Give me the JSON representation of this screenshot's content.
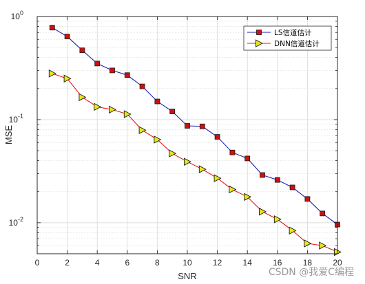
{
  "chart_data": {
    "type": "line",
    "xlabel": "SNR",
    "ylabel": "MSE",
    "xlim": [
      0,
      20
    ],
    "ylim": [
      0.005,
      1
    ],
    "yscale": "log",
    "xticks": [
      0,
      2,
      4,
      6,
      8,
      10,
      12,
      14,
      16,
      18,
      20
    ],
    "xtick_labels": [
      "0",
      "2",
      "4",
      "6",
      "8",
      "10",
      "12",
      "14",
      "16",
      "18",
      "20"
    ],
    "yticks": [
      {
        "value": 1,
        "base": "10",
        "exp": "0"
      },
      {
        "value": 0.1,
        "base": "10",
        "exp": "-1"
      },
      {
        "value": 0.01,
        "base": "10",
        "exp": "-2"
      }
    ],
    "grid": true,
    "legend_position": "top-right",
    "x": [
      1,
      2,
      3,
      4,
      5,
      6,
      7,
      8,
      9,
      10,
      11,
      12,
      13,
      14,
      15,
      16,
      17,
      18,
      19,
      20
    ],
    "series": [
      {
        "name": "LS信道估计",
        "line_color": "#1f1fb4",
        "marker": "square",
        "marker_color": "#cc1111",
        "values": [
          0.78,
          0.64,
          0.47,
          0.35,
          0.3,
          0.27,
          0.21,
          0.15,
          0.12,
          0.087,
          0.086,
          0.068,
          0.048,
          0.042,
          0.029,
          0.026,
          0.022,
          0.017,
          0.0123,
          0.0096
        ]
      },
      {
        "name": "DNN信道估计",
        "line_color": "#e81818",
        "marker": "triangle-right",
        "marker_color": "#e6e61a",
        "values": [
          0.28,
          0.25,
          0.165,
          0.133,
          0.125,
          0.113,
          0.079,
          0.064,
          0.047,
          0.039,
          0.033,
          0.027,
          0.021,
          0.0178,
          0.0128,
          0.0108,
          0.0084,
          0.0063,
          0.006,
          0.0052
        ]
      }
    ]
  },
  "watermark": "CSDN @我爱C编程"
}
